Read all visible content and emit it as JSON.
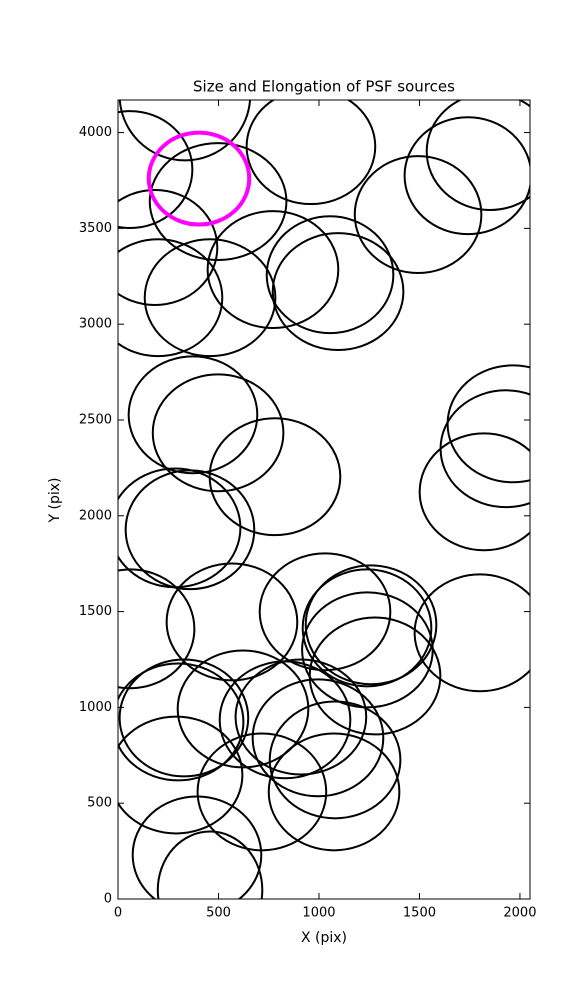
{
  "chart_data": {
    "type": "ellipse",
    "title": "Size and Elongation of PSF sources",
    "x_label": "X (pix)",
    "y_label": "Y (pix)",
    "xlim": [
      0,
      2050
    ],
    "ylim": [
      0,
      4170
    ],
    "xticks": [
      0,
      500,
      1000,
      1500,
      2000
    ],
    "yticks": [
      0,
      500,
      1000,
      1500,
      2000,
      2500,
      3000,
      3500,
      4000
    ],
    "color": "#000000",
    "ellipses": {
      "x": [
        333,
        960,
        60,
        498,
        1493,
        1741,
        1851,
        184,
        199,
        458,
        771,
        1055,
        1095,
        373,
        498,
        781,
        1965,
        1930,
        1821,
        284,
        358,
        60,
        567,
        1030,
        1259,
        1239,
        1801,
        1241,
        1279,
        299,
        328,
        622,
        831,
        910,
        995,
        1080,
        289,
        716,
        1075,
        393,
        458
      ],
      "y": [
        4195,
        3927,
        3807,
        3640,
        3572,
        3775,
        3901,
        3400,
        3138,
        3138,
        3285,
        3258,
        3170,
        2527,
        2433,
        2204,
        2480,
        2350,
        2125,
        1937,
        1927,
        1410,
        1446,
        1499,
        1431,
        1415,
        1389,
        1300,
        1164,
        924,
        945,
        992,
        935,
        950,
        841,
        726,
        647,
        559,
        559,
        230,
        47
      ],
      "width": [
        650,
        640,
        620,
        680,
        630,
        630,
        630,
        620,
        640,
        650,
        650,
        630,
        650,
        640,
        650,
        650,
        650,
        650,
        640,
        650,
        640,
        640,
        650,
        650,
        650,
        640,
        650,
        650,
        650,
        650,
        640,
        650,
        650,
        650,
        650,
        650,
        660,
        640,
        650,
        640,
        520
      ],
      "height": [
        680,
        600,
        610,
        610,
        610,
        610,
        610,
        600,
        610,
        610,
        610,
        610,
        610,
        610,
        610,
        610,
        610,
        610,
        610,
        620,
        620,
        620,
        610,
        610,
        620,
        610,
        610,
        600,
        610,
        610,
        610,
        610,
        610,
        600,
        610,
        610,
        610,
        610,
        610,
        610,
        610
      ]
    },
    "highlight": {
      "x": 403,
      "y": 3760,
      "width": 500,
      "height": 480,
      "color": "#ff00ff"
    }
  }
}
